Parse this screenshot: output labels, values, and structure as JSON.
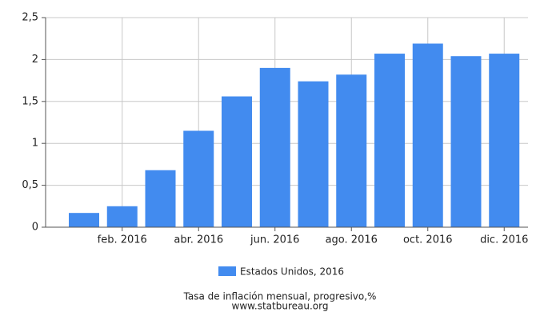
{
  "chart_data": {
    "type": "bar",
    "categories": [
      null,
      "feb. 2016",
      null,
      "abr. 2016",
      null,
      "jun. 2016",
      null,
      "ago. 2016",
      null,
      "oct. 2016",
      null,
      "dic. 2016"
    ],
    "series": [
      {
        "name": "Estados Unidos, 2016",
        "color": "#428bef",
        "values": [
          0.17,
          0.25,
          0.68,
          1.15,
          1.56,
          1.9,
          1.74,
          1.82,
          2.07,
          2.19,
          2.04,
          2.07
        ]
      }
    ],
    "ylim": [
      0,
      2.5
    ],
    "yticks": [
      0,
      {
        "value": 0.5,
        "label": "0,5"
      },
      1,
      {
        "value": 1.5,
        "label": "1,5"
      },
      2,
      {
        "value": 2.5,
        "label": "2,5"
      }
    ],
    "grid": true,
    "caption": "Tasa de inflación mensual, progresivo,%",
    "source": "www.statbureau.org"
  }
}
